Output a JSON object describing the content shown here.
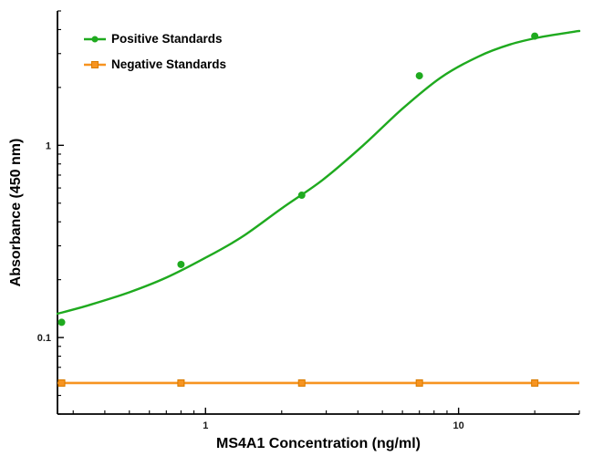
{
  "chart_data": {
    "type": "line",
    "title": "",
    "xlabel": "MS4A1 Concentration (ng/ml)",
    "ylabel": "Absorbance (450 nm)",
    "x_scale": "log",
    "y_scale": "log",
    "xlim": [
      0.26,
      30
    ],
    "ylim": [
      0.04,
      5.0
    ],
    "grid": false,
    "legend_position": "top-left",
    "x_tick_labels": [
      {
        "value": 1,
        "label": "1"
      },
      {
        "value": 10,
        "label": "10"
      }
    ],
    "y_tick_labels": [
      {
        "value": 0.1,
        "label": "0.1"
      },
      {
        "value": 1,
        "label": "1"
      }
    ],
    "colors": {
      "background": "#ffffff",
      "axis": "#000000",
      "positive": "#1faa1f",
      "negative": "#f79420",
      "negative_edge": "#d97c00"
    },
    "series": [
      {
        "name": "Positive Standards",
        "color": "#1faa1f",
        "marker": "circle",
        "x": [
          0.27,
          0.8,
          2.4,
          7,
          20
        ],
        "y": [
          0.12,
          0.24,
          0.55,
          2.3,
          3.7
        ],
        "fit_curve": {
          "x": [
            0.26,
            0.35,
            0.5,
            0.7,
            1.0,
            1.4,
            2.0,
            2.9,
            4.2,
            6.0,
            8.5,
            12,
            16,
            21,
            28,
            30
          ],
          "y": [
            0.133,
            0.148,
            0.172,
            0.205,
            0.26,
            0.335,
            0.47,
            0.66,
            1.0,
            1.55,
            2.25,
            2.9,
            3.35,
            3.65,
            3.88,
            3.93
          ]
        }
      },
      {
        "name": "Negative Standards",
        "color": "#f79420",
        "marker": "square",
        "x": [
          0.27,
          0.8,
          2.4,
          7,
          20
        ],
        "y": [
          0.058,
          0.058,
          0.058,
          0.058,
          0.058
        ],
        "flat_line_value": 0.058
      }
    ]
  }
}
